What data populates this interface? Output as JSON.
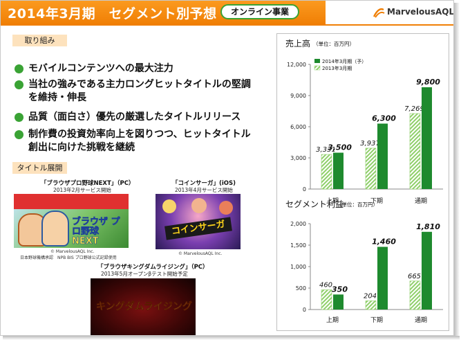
{
  "header": {
    "title": "2014年3月期　セグメント別予想",
    "segment_tag": "オンライン事業",
    "logo_text": "MarvelousAQL"
  },
  "initiatives": {
    "label": "取り組み",
    "bullets": [
      [
        "モバイルコンテンツへの最大注力"
      ],
      [
        "当社の強みである主力ロングヒットタイトルの堅調",
        "を維持・伸長"
      ],
      [
        "品質（面白さ）優先の厳選したタイトルリリース"
      ],
      [
        "制作費の投資効率向上を図りつつ、ヒットタイトル",
        "創出に向けた挑戦を継続"
      ]
    ]
  },
  "titles": {
    "label": "タイトル展開",
    "games": [
      {
        "name": "「ブラウザプロ野球NEXT」（PC）",
        "release": "2013年2月サービス開始",
        "credits": [
          "© MarvelousAQL Inc.",
          "日本野球機構承認　NPB BIS プロ野球公式記録使用"
        ],
        "art_text": "ブラウザ プロ野球 NEXT"
      },
      {
        "name": "「コインサーガ」(iOS)",
        "release": "2013年4月サービス開始",
        "credits": [
          "© MarvelousAQL Inc."
        ],
        "art_text": "コインサーガ"
      },
      {
        "name": "「ブラウザキングダムライジング」（PC）",
        "release": "2013年5月オープンβテスト開始予定",
        "credits": [],
        "art_text": "キングダムライジング"
      }
    ]
  },
  "colors": {
    "orange": "#f07f05",
    "green": "#3aa335",
    "dark_green": "#1e8a2e",
    "light_green": "#8fcf6a"
  },
  "chart_data": [
    {
      "type": "bar",
      "title": "売上高",
      "unit": "（単位：百万円）",
      "categories": [
        "上期",
        "下期",
        "通期"
      ],
      "series": [
        {
          "name": "2014年3月期（予）",
          "values": [
            3500,
            6300,
            9800
          ],
          "style": "solid"
        },
        {
          "name": "2013年3月期",
          "values": [
            3331,
            3937,
            7269
          ],
          "style": "hatched"
        }
      ],
      "value_labels": {
        "2014年3月期（予）": [
          "3,500",
          "6,300",
          "9,800"
        ],
        "2013年3月期": [
          "3,331",
          "3,937",
          "7,269"
        ]
      },
      "ylim": [
        0,
        12000
      ],
      "yticks": [
        "0",
        "3,000",
        "6,000",
        "9,000",
        "12,000"
      ],
      "legend": "top-left"
    },
    {
      "type": "bar",
      "title": "セグメント利益",
      "unit": "（単位：百万円）",
      "categories": [
        "上期",
        "下期",
        "通期"
      ],
      "series": [
        {
          "name": "2014年3月期（予）",
          "values": [
            350,
            1460,
            1810
          ],
          "style": "solid"
        },
        {
          "name": "2013年3月期",
          "values": [
            460,
            204,
            665
          ],
          "style": "hatched"
        }
      ],
      "value_labels": {
        "2014年3月期（予）": [
          "350",
          "1,460",
          "1,810"
        ],
        "2013年3月期": [
          "460",
          "204",
          "665"
        ]
      },
      "ylim": [
        0,
        2000
      ],
      "yticks": [
        "0",
        "500",
        "1,000",
        "1,500",
        "2,000"
      ]
    }
  ]
}
